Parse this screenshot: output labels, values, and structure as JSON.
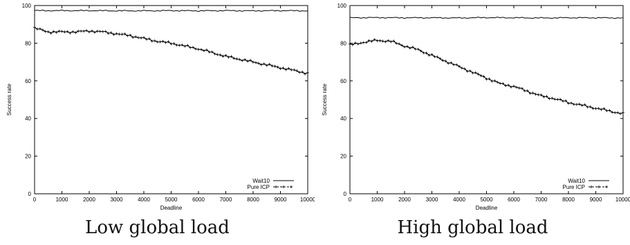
{
  "chart_data": [
    {
      "type": "line",
      "caption": "Low global load",
      "xlabel": "Deadline",
      "ylabel": "Success rate",
      "xlim": [
        0,
        10000
      ],
      "ylim": [
        0,
        100
      ],
      "xticks": [
        0,
        1000,
        2000,
        3000,
        4000,
        5000,
        6000,
        7000,
        8000,
        9000,
        10000
      ],
      "yticks": [
        0,
        20,
        40,
        60,
        80,
        100
      ],
      "legend_position": "bottom-right",
      "series": [
        {
          "name": "Wait10",
          "style": "solid",
          "x": [
            0,
            1000,
            2000,
            3000,
            4000,
            5000,
            6000,
            7000,
            8000,
            9000,
            10000
          ],
          "values": [
            97.3,
            97.3,
            97.3,
            97.2,
            97.2,
            97.3,
            97.2,
            97.3,
            97.2,
            97.3,
            97.2
          ]
        },
        {
          "name": "Pure ICP",
          "style": "dashed-cross",
          "x": [
            0,
            500,
            1000,
            1500,
            2000,
            2500,
            3000,
            3500,
            4000,
            4500,
            5000,
            5500,
            6000,
            6500,
            7000,
            7500,
            8000,
            8500,
            9000,
            9500,
            10000
          ],
          "values": [
            88,
            86,
            86,
            86,
            86.5,
            86,
            85,
            84,
            82.5,
            81,
            80,
            78.5,
            77,
            75,
            73,
            71.5,
            70,
            68.5,
            67,
            65.5,
            64
          ]
        }
      ]
    },
    {
      "type": "line",
      "caption": "High global load",
      "xlabel": "Deadline",
      "ylabel": "Success rate",
      "xlim": [
        0,
        10000
      ],
      "ylim": [
        0,
        100
      ],
      "xticks": [
        0,
        1000,
        2000,
        3000,
        4000,
        5000,
        6000,
        7000,
        8000,
        9000,
        10000
      ],
      "yticks": [
        0,
        20,
        40,
        60,
        80,
        100
      ],
      "legend_position": "bottom-right",
      "series": [
        {
          "name": "Wait10",
          "style": "solid",
          "x": [
            0,
            1000,
            2000,
            3000,
            4000,
            5000,
            6000,
            7000,
            8000,
            9000,
            10000
          ],
          "values": [
            93.5,
            93.6,
            93.5,
            93.5,
            93.4,
            93.6,
            93.5,
            93.4,
            93.5,
            93.5,
            93.4
          ]
        },
        {
          "name": "Pure ICP",
          "style": "dashed-cross",
          "x": [
            0,
            500,
            1000,
            1500,
            2000,
            2500,
            3000,
            3500,
            4000,
            4500,
            5000,
            5500,
            6000,
            6500,
            7000,
            7500,
            8000,
            8500,
            9000,
            9500,
            10000
          ],
          "values": [
            79,
            80.5,
            81.5,
            81,
            78.5,
            76.5,
            73.5,
            70.5,
            67.5,
            64.5,
            61.5,
            58.5,
            57,
            54.5,
            52,
            50.5,
            48.5,
            47,
            45.5,
            44,
            42.5
          ]
        }
      ]
    }
  ]
}
